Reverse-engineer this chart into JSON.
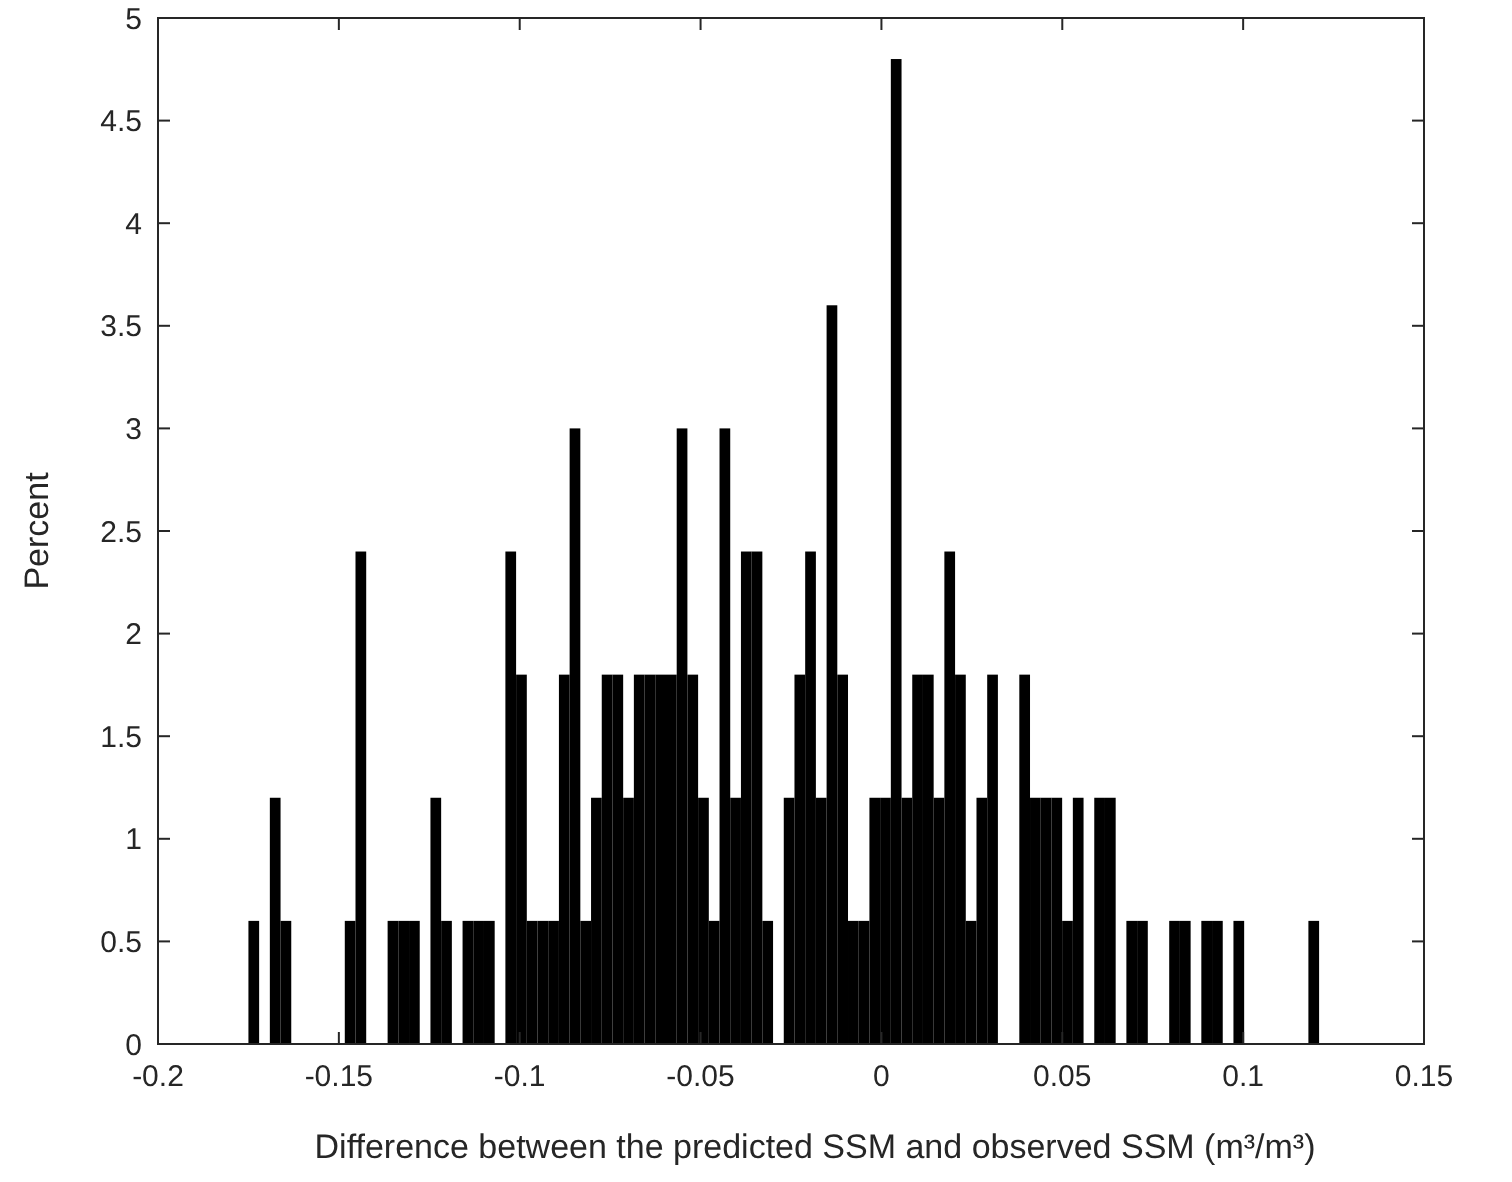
{
  "chart_data": {
    "type": "histogram",
    "xlabel": "Difference between the predicted SSM and observed SSM (m³/m³)",
    "ylabel": "Percent",
    "color": "#000000",
    "bins": [
      -0.175,
      -0.17204,
      -0.16908,
      -0.16612,
      -0.16316,
      -0.1602,
      -0.15724,
      -0.15428,
      -0.15132,
      -0.14836,
      -0.1454,
      -0.14244,
      -0.13948,
      -0.13652,
      -0.13356,
      -0.1306,
      -0.12764,
      -0.12468,
      -0.12172,
      -0.11876,
      -0.1158,
      -0.11284,
      -0.10988,
      -0.10692,
      -0.10396,
      -0.101,
      -0.09804,
      -0.09508,
      -0.09212,
      -0.08916,
      -0.0862,
      -0.08324,
      -0.08028,
      -0.07732,
      -0.07436,
      -0.0714,
      -0.06844,
      -0.06548,
      -0.06252,
      -0.05956,
      -0.0566,
      -0.05364,
      -0.05068,
      -0.04772,
      -0.04476,
      -0.0418,
      -0.03884,
      -0.03588,
      -0.03292,
      -0.02996,
      -0.027,
      -0.02404,
      -0.02108,
      -0.01812,
      -0.01516,
      -0.0122,
      -0.00924,
      -0.00628,
      -0.00332,
      -0.00036,
      0.0026,
      0.00556,
      0.00852,
      0.01148,
      0.01444,
      0.0174,
      0.02036,
      0.02332,
      0.02628,
      0.02924,
      0.0322,
      0.03516,
      0.03812,
      0.04108,
      0.04404,
      0.047,
      0.04996,
      0.05292,
      0.05588,
      0.05884,
      0.0618,
      0.06476,
      0.06772,
      0.07068,
      0.07364,
      0.0766,
      0.07956,
      0.08252,
      0.08548,
      0.08844,
      0.0914,
      0.09436,
      0.09732,
      0.10028,
      0.10324,
      0.1062,
      0.10916,
      0.11212,
      0.11508,
      0.11804,
      0.121
    ],
    "values": [
      0.6,
      0,
      1.2,
      0.6,
      0,
      0,
      0,
      0,
      0,
      0.6,
      2.4,
      0,
      0,
      0.6,
      0.6,
      0.6,
      0,
      1.2,
      0.6,
      0,
      0.6,
      0.6,
      0.6,
      0,
      2.4,
      1.8,
      0.6,
      0.6,
      0.6,
      1.8,
      3.0,
      0.6,
      1.2,
      1.8,
      1.8,
      1.2,
      1.8,
      1.8,
      1.8,
      1.8,
      3.0,
      1.8,
      1.2,
      0.6,
      3.0,
      1.2,
      2.4,
      2.4,
      0.6,
      0,
      1.2,
      1.8,
      2.4,
      1.2,
      3.6,
      1.8,
      0.6,
      0.6,
      1.2,
      1.2,
      4.8,
      1.2,
      1.8,
      1.8,
      1.2,
      2.4,
      1.8,
      0.6,
      1.2,
      1.8,
      0,
      0,
      1.8,
      1.2,
      1.2,
      1.2,
      0.6,
      1.2,
      0,
      1.2,
      1.2,
      0,
      0.6,
      0.6,
      0,
      0,
      0.6,
      0.6,
      0,
      0.6,
      0.6,
      0,
      0.6,
      0,
      0,
      0,
      0,
      0,
      0,
      0.6
    ],
    "xlim": [
      -0.2,
      0.15
    ],
    "xticks": [
      -0.2,
      -0.15,
      -0.1,
      -0.05,
      0,
      0.05,
      0.1,
      0.15
    ],
    "ylim": [
      0,
      5
    ],
    "yticks": [
      0,
      0.5,
      1,
      1.5,
      2,
      2.5,
      3,
      3.5,
      4,
      4.5,
      5
    ]
  }
}
